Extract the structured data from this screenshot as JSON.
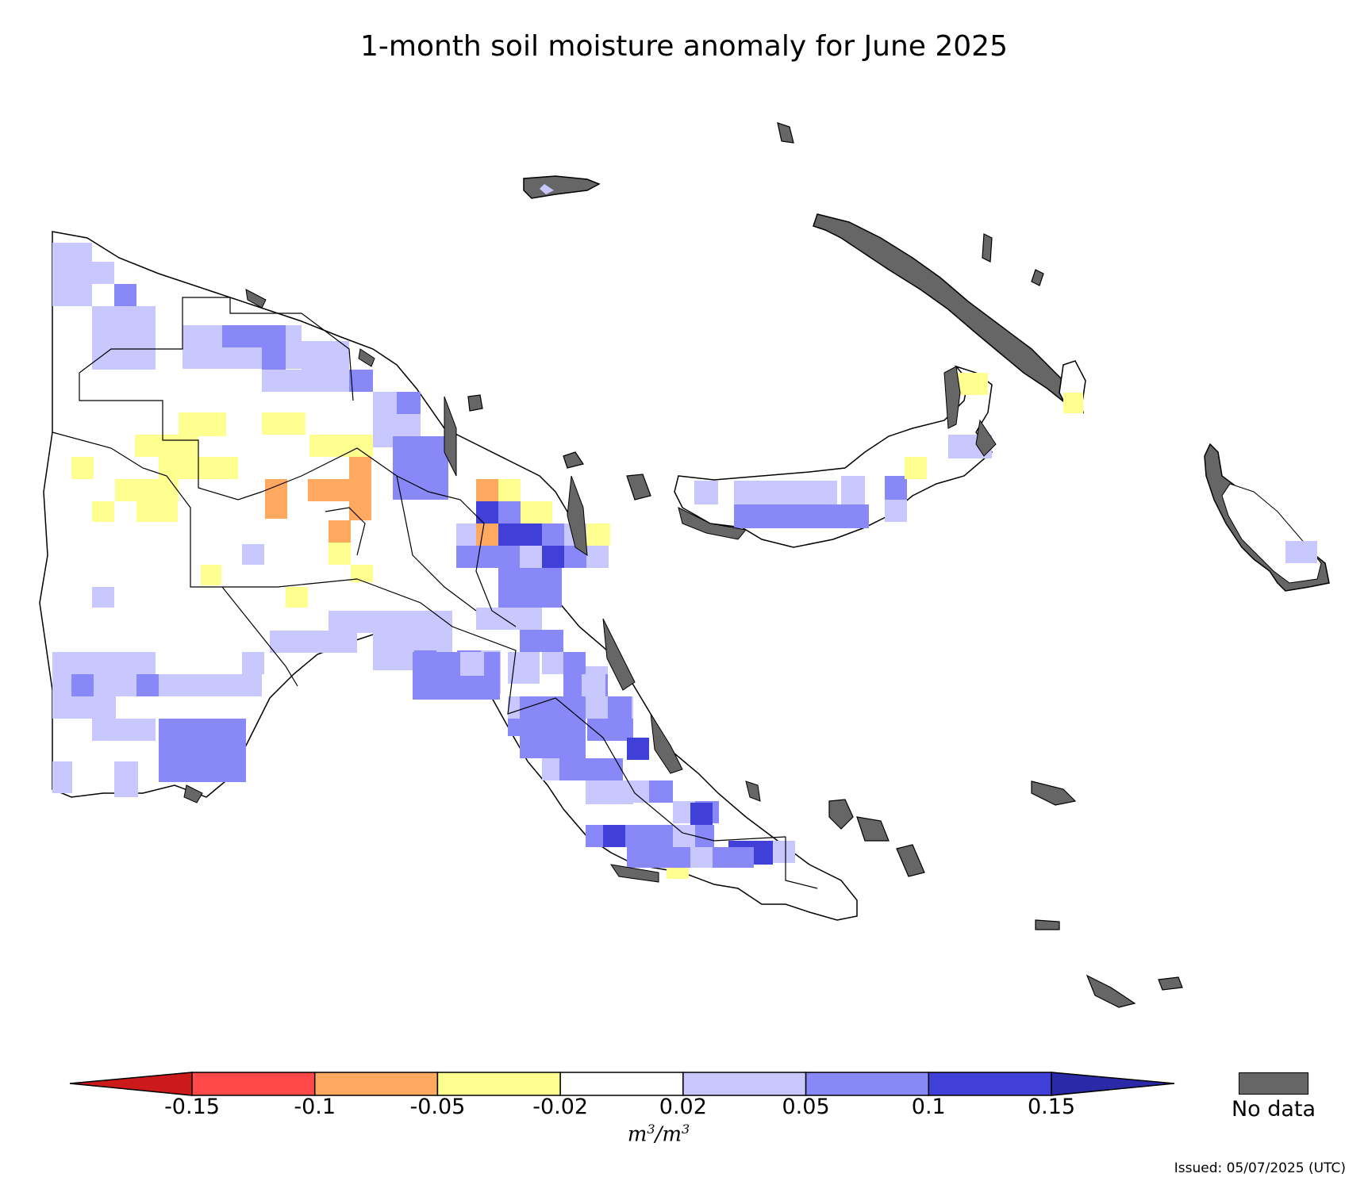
{
  "title": "1-month soil moisture anomaly for June 2025",
  "colorbar": {
    "tick_labels": [
      "-0.15",
      "-0.1",
      "-0.05",
      "-0.02",
      "0.02",
      "0.05",
      "0.1",
      "0.15"
    ],
    "colors": [
      "#cc1a1a",
      "#ff4848",
      "#ffa860",
      "#ffff90",
      "#ffffff",
      "#c8c8ff",
      "#8888f8",
      "#4040d8",
      "#2a2aa8"
    ],
    "units_base": "m",
    "units_exp": "3",
    "units_sep": "/",
    "units_base2": "m",
    "units_exp2": "3"
  },
  "nodata": {
    "label": "No data",
    "color": "#666666"
  },
  "issued": "Issued: 05/07/2025 (UTC)"
}
